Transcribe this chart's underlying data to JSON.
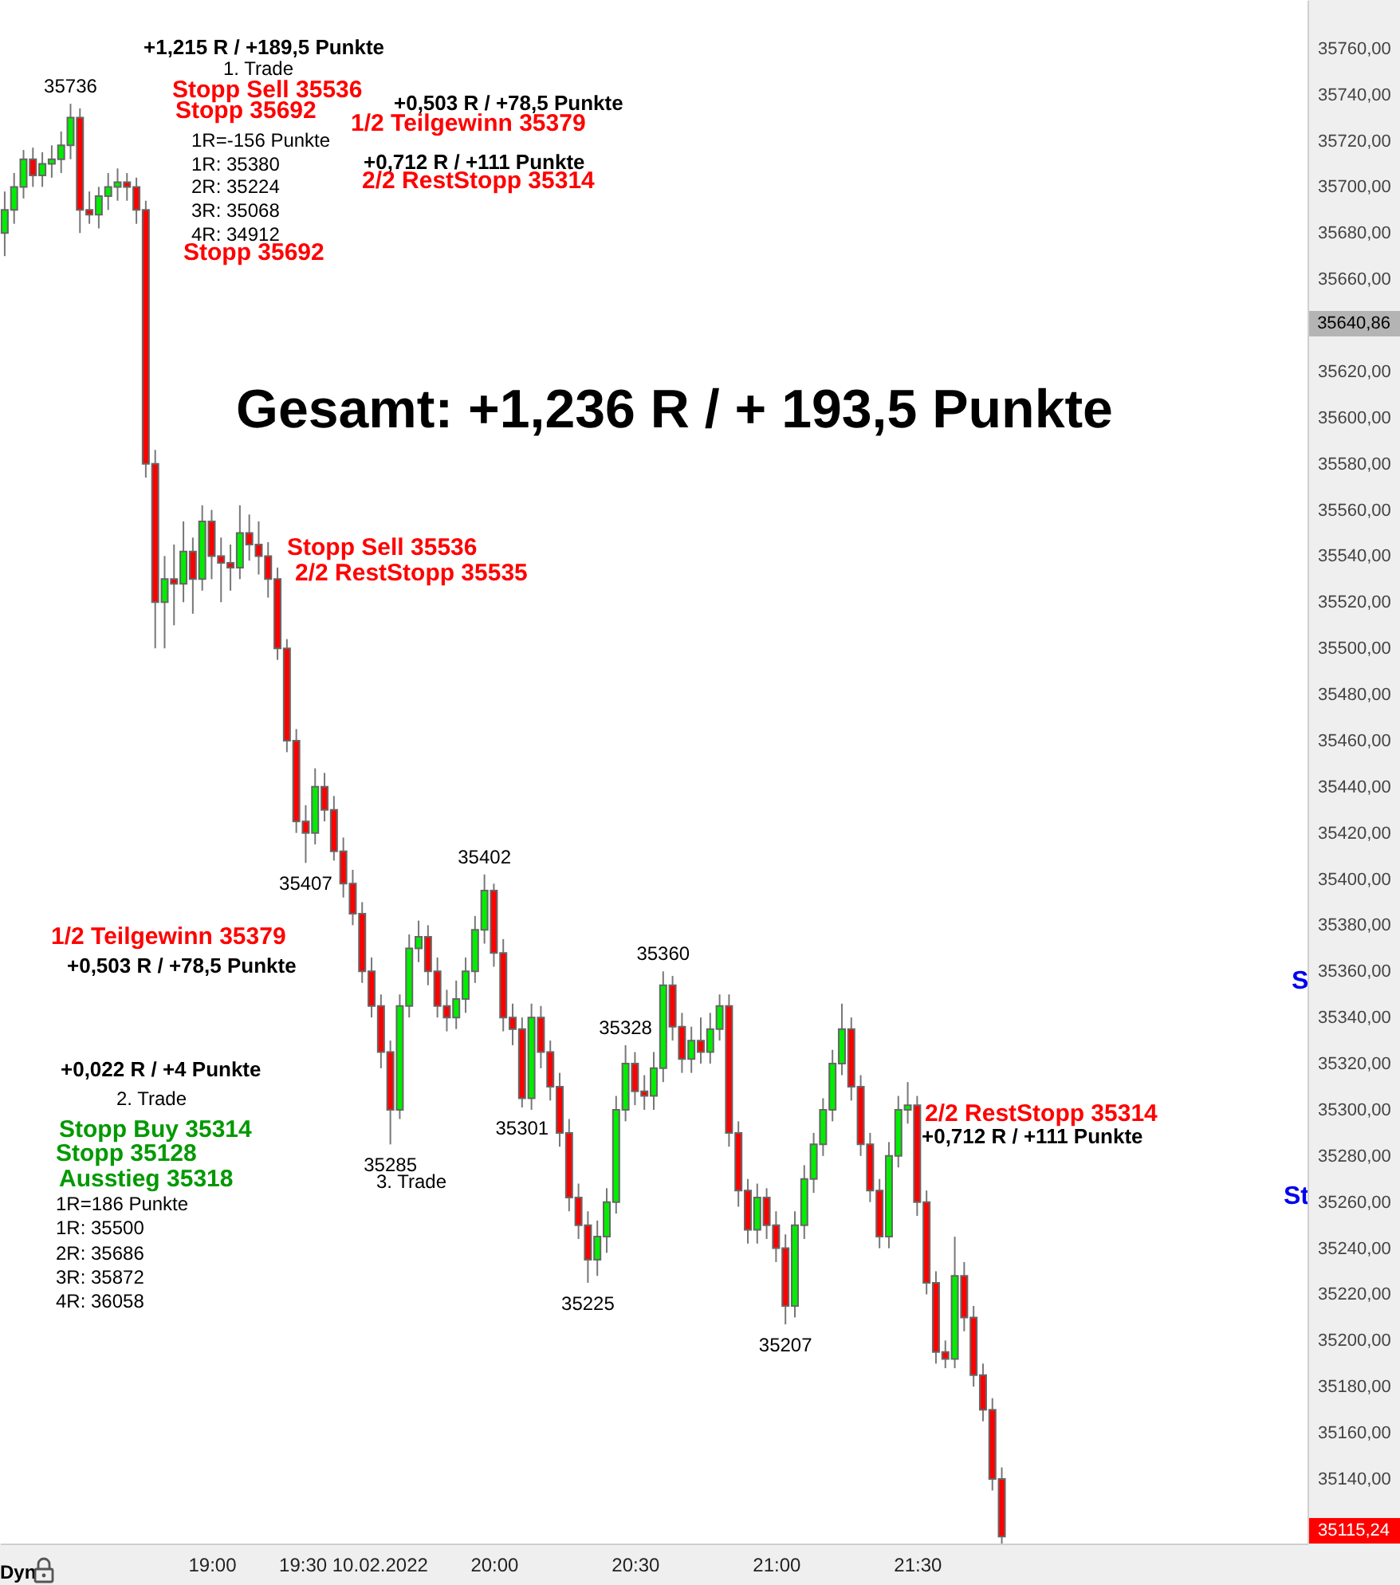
{
  "chart_data": {
    "type": "candlestick",
    "x": [
      "2022-02-10T18:16",
      "2022-02-10T18:18",
      "2022-02-10T18:20",
      "2022-02-10T18:22",
      "2022-02-10T18:24",
      "2022-02-10T18:26",
      "2022-02-10T18:28",
      "2022-02-10T18:30",
      "2022-02-10T18:32",
      "2022-02-10T18:34",
      "2022-02-10T18:36",
      "2022-02-10T18:38",
      "2022-02-10T18:40",
      "2022-02-10T18:42",
      "2022-02-10T18:44",
      "2022-02-10T18:46",
      "2022-02-10T18:48",
      "2022-02-10T18:50",
      "2022-02-10T18:52",
      "2022-02-10T18:54",
      "2022-02-10T18:56",
      "2022-02-10T18:58",
      "2022-02-10T19:00",
      "2022-02-10T19:02",
      "2022-02-10T19:04",
      "2022-02-10T19:06",
      "2022-02-10T19:08",
      "2022-02-10T19:10",
      "2022-02-10T19:12",
      "2022-02-10T19:14",
      "2022-02-10T19:16",
      "2022-02-10T19:18",
      "2022-02-10T19:20",
      "2022-02-10T19:22",
      "2022-02-10T19:24",
      "2022-02-10T19:26",
      "2022-02-10T19:28",
      "2022-02-10T19:30",
      "2022-02-10T19:32",
      "2022-02-10T19:34",
      "2022-02-10T19:36",
      "2022-02-10T19:38",
      "2022-02-10T19:40",
      "2022-02-10T19:42",
      "2022-02-10T19:44",
      "2022-02-10T19:46",
      "2022-02-10T19:48",
      "2022-02-10T19:50",
      "2022-02-10T19:52",
      "2022-02-10T19:54",
      "2022-02-10T19:56",
      "2022-02-10T19:58",
      "2022-02-10T20:00",
      "2022-02-10T20:02",
      "2022-02-10T20:04",
      "2022-02-10T20:06",
      "2022-02-10T20:08",
      "2022-02-10T20:10",
      "2022-02-10T20:12",
      "2022-02-10T20:14",
      "2022-02-10T20:16",
      "2022-02-10T20:18",
      "2022-02-10T20:20",
      "2022-02-10T20:22",
      "2022-02-10T20:24",
      "2022-02-10T20:26",
      "2022-02-10T20:28",
      "2022-02-10T20:30",
      "2022-02-10T20:32",
      "2022-02-10T20:34",
      "2022-02-10T20:36",
      "2022-02-10T20:38",
      "2022-02-10T20:40",
      "2022-02-10T20:42",
      "2022-02-10T20:44",
      "2022-02-10T20:46",
      "2022-02-10T20:48",
      "2022-02-10T20:50",
      "2022-02-10T20:52",
      "2022-02-10T20:54",
      "2022-02-10T20:56",
      "2022-02-10T20:58",
      "2022-02-10T21:00",
      "2022-02-10T21:02",
      "2022-02-10T21:04",
      "2022-02-10T21:06",
      "2022-02-10T21:08",
      "2022-02-10T21:10",
      "2022-02-10T21:12",
      "2022-02-10T21:14",
      "2022-02-10T21:16",
      "2022-02-10T21:18",
      "2022-02-10T21:20",
      "2022-02-10T21:22",
      "2022-02-10T21:24",
      "2022-02-10T21:26",
      "2022-02-10T21:28",
      "2022-02-10T21:30",
      "2022-02-10T21:32",
      "2022-02-10T21:34",
      "2022-02-10T21:36",
      "2022-02-10T21:38",
      "2022-02-10T21:40",
      "2022-02-10T21:42",
      "2022-02-10T21:44",
      "2022-02-10T21:46",
      "2022-02-10T21:48"
    ],
    "ohlc": [
      [
        35680,
        35698,
        35670,
        35690
      ],
      [
        35690,
        35706,
        35684,
        35700
      ],
      [
        35700,
        35716,
        35695,
        35712
      ],
      [
        35712,
        35717,
        35700,
        35705
      ],
      [
        35705,
        35715,
        35700,
        35710
      ],
      [
        35710,
        35718,
        35704,
        35712
      ],
      [
        35712,
        35724,
        35706,
        35718
      ],
      [
        35718,
        35736,
        35712,
        35730
      ],
      [
        35730,
        35734,
        35680,
        35690
      ],
      [
        35690,
        35698,
        35684,
        35688
      ],
      [
        35688,
        35700,
        35682,
        35696
      ],
      [
        35696,
        35706,
        35690,
        35700
      ],
      [
        35700,
        35708,
        35694,
        35702
      ],
      [
        35702,
        35706,
        35694,
        35700
      ],
      [
        35700,
        35704,
        35684,
        35690
      ],
      [
        35690,
        35694,
        35574,
        35580
      ],
      [
        35580,
        35586,
        35500,
        35520
      ],
      [
        35520,
        35540,
        35500,
        35530
      ],
      [
        35530,
        35545,
        35510,
        35528
      ],
      [
        35528,
        35555,
        35520,
        35542
      ],
      [
        35542,
        35548,
        35515,
        35530
      ],
      [
        35530,
        35562,
        35525,
        35555
      ],
      [
        35555,
        35560,
        35530,
        35540
      ],
      [
        35540,
        35548,
        35520,
        35537
      ],
      [
        35537,
        35545,
        35525,
        35535
      ],
      [
        35535,
        35562,
        35530,
        35550
      ],
      [
        35550,
        35558,
        35538,
        35545
      ],
      [
        35545,
        35555,
        35532,
        35540
      ],
      [
        35540,
        35546,
        35522,
        35530
      ],
      [
        35530,
        35535,
        35495,
        35500
      ],
      [
        35500,
        35504,
        35455,
        35460
      ],
      [
        35460,
        35465,
        35420,
        35425
      ],
      [
        35425,
        35432,
        35407,
        35420
      ],
      [
        35420,
        35448,
        35415,
        35440
      ],
      [
        35440,
        35446,
        35425,
        35430
      ],
      [
        35430,
        35436,
        35408,
        35412
      ],
      [
        35412,
        35418,
        35392,
        35398
      ],
      [
        35398,
        35404,
        35380,
        35385
      ],
      [
        35385,
        35390,
        35355,
        35360
      ],
      [
        35360,
        35366,
        35340,
        35345
      ],
      [
        35345,
        35350,
        35318,
        35325
      ],
      [
        35325,
        35330,
        35285,
        35300
      ],
      [
        35300,
        35350,
        35296,
        35345
      ],
      [
        35345,
        35376,
        35340,
        35370
      ],
      [
        35370,
        35382,
        35364,
        35375
      ],
      [
        35375,
        35380,
        35354,
        35360
      ],
      [
        35360,
        35366,
        35340,
        35345
      ],
      [
        35345,
        35352,
        35334,
        35340
      ],
      [
        35340,
        35356,
        35335,
        35348
      ],
      [
        35348,
        35366,
        35342,
        35360
      ],
      [
        35360,
        35384,
        35355,
        35378
      ],
      [
        35378,
        35402,
        35372,
        35395
      ],
      [
        35395,
        35398,
        35362,
        35368
      ],
      [
        35368,
        35374,
        35334,
        35340
      ],
      [
        35340,
        35346,
        35328,
        35335
      ],
      [
        35335,
        35340,
        35301,
        35305
      ],
      [
        35305,
        35346,
        35300,
        35340
      ],
      [
        35340,
        35345,
        35318,
        35325
      ],
      [
        35325,
        35330,
        35304,
        35310
      ],
      [
        35310,
        35316,
        35284,
        35290
      ],
      [
        35290,
        35296,
        35256,
        35262
      ],
      [
        35262,
        35268,
        35244,
        35250
      ],
      [
        35250,
        35256,
        35225,
        35235
      ],
      [
        35235,
        35252,
        35228,
        35245
      ],
      [
        35245,
        35266,
        35238,
        35260
      ],
      [
        35260,
        35306,
        35255,
        35300
      ],
      [
        35300,
        35328,
        35295,
        35320
      ],
      [
        35320,
        35325,
        35302,
        35308
      ],
      [
        35308,
        35315,
        35300,
        35306
      ],
      [
        35306,
        35325,
        35300,
        35318
      ],
      [
        35318,
        35360,
        35312,
        35354
      ],
      [
        35354,
        35358,
        35330,
        35336
      ],
      [
        35336,
        35342,
        35316,
        35322
      ],
      [
        35322,
        35336,
        35316,
        35330
      ],
      [
        35330,
        35340,
        35320,
        35325
      ],
      [
        35325,
        35342,
        35320,
        35335
      ],
      [
        35335,
        35350,
        35330,
        35345
      ],
      [
        35345,
        35350,
        35284,
        35290
      ],
      [
        35290,
        35295,
        35258,
        35265
      ],
      [
        35265,
        35270,
        35242,
        35248
      ],
      [
        35248,
        35268,
        35242,
        35262
      ],
      [
        35262,
        35266,
        35244,
        35250
      ],
      [
        35250,
        35256,
        35234,
        35240
      ],
      [
        35240,
        35246,
        35207,
        35215
      ],
      [
        35215,
        35256,
        35210,
        35250
      ],
      [
        35250,
        35276,
        35244,
        35270
      ],
      [
        35270,
        35290,
        35264,
        35285
      ],
      [
        35285,
        35305,
        35280,
        35300
      ],
      [
        35300,
        35326,
        35295,
        35320
      ],
      [
        35320,
        35346,
        35315,
        35335
      ],
      [
        35335,
        35340,
        35304,
        35310
      ],
      [
        35310,
        35315,
        35280,
        35285
      ],
      [
        35285,
        35290,
        35260,
        35265
      ],
      [
        35265,
        35270,
        35240,
        35245
      ],
      [
        35245,
        35286,
        35240,
        35280
      ],
      [
        35280,
        35306,
        35275,
        35300
      ],
      [
        35300,
        35312,
        35294,
        35302
      ],
      [
        35302,
        35306,
        35254,
        35260
      ],
      [
        35260,
        35265,
        35220,
        35225
      ],
      [
        35225,
        35230,
        35190,
        35195
      ],
      [
        35195,
        35200,
        35188,
        35192
      ],
      [
        35192,
        35245,
        35188,
        35228
      ],
      [
        35228,
        35234,
        35204,
        35210
      ],
      [
        35210,
        35215,
        35180,
        35185
      ],
      [
        35185,
        35190,
        35165,
        35170
      ],
      [
        35170,
        35175,
        35135,
        35140
      ],
      [
        35140,
        35145,
        35112,
        35115
      ]
    ],
    "xlim": [
      "2022-02-10T18:15",
      "2022-02-10T22:53"
    ],
    "xticks": [
      {
        "value": "2022-02-10T19:00",
        "label": "19:00"
      },
      {
        "value": "2022-02-10T19:30",
        "label": "19:30 10.02.2022"
      },
      {
        "value": "2022-02-10T20:00",
        "label": "20:00"
      },
      {
        "value": "2022-02-10T20:30",
        "label": "20:30"
      },
      {
        "value": "2022-02-10T21:00",
        "label": "21:00"
      },
      {
        "value": "2022-02-10T21:30",
        "label": "21:30"
      }
    ],
    "ylim": [
      35112,
      35781
    ],
    "yticks": [
      {
        "value": 35140,
        "label": "35140,00"
      },
      {
        "value": 35160,
        "label": "35160,00"
      },
      {
        "value": 35180,
        "label": "35180,00"
      },
      {
        "value": 35200,
        "label": "35200,00"
      },
      {
        "value": 35220,
        "label": "35220,00"
      },
      {
        "value": 35240,
        "label": "35240,00"
      },
      {
        "value": 35260,
        "label": "35260,00"
      },
      {
        "value": 35280,
        "label": "35280,00"
      },
      {
        "value": 35300,
        "label": "35300,00"
      },
      {
        "value": 35320,
        "label": "35320,00"
      },
      {
        "value": 35340,
        "label": "35340,00"
      },
      {
        "value": 35360,
        "label": "35360,00"
      },
      {
        "value": 35380,
        "label": "35380,00"
      },
      {
        "value": 35400,
        "label": "35400,00"
      },
      {
        "value": 35420,
        "label": "35420,00"
      },
      {
        "value": 35440,
        "label": "35440,00"
      },
      {
        "value": 35460,
        "label": "35460,00"
      },
      {
        "value": 35480,
        "label": "35480,00"
      },
      {
        "value": 35500,
        "label": "35500,00"
      },
      {
        "value": 35520,
        "label": "35520,00"
      },
      {
        "value": 35540,
        "label": "35540,00"
      },
      {
        "value": 35560,
        "label": "35560,00"
      },
      {
        "value": 35580,
        "label": "35580,00"
      },
      {
        "value": 35600,
        "label": "35600,00"
      },
      {
        "value": 35620,
        "label": "35620,00"
      },
      {
        "value": 35660,
        "label": "35660,00"
      },
      {
        "value": 35680,
        "label": "35680,00"
      },
      {
        "value": 35700,
        "label": "35700,00"
      },
      {
        "value": 35720,
        "label": "35720,00"
      },
      {
        "value": 35740,
        "label": "35740,00"
      },
      {
        "value": 35760,
        "label": "35760,00"
      }
    ],
    "annotations": [
      "+1,215 R / +189,5 Punkte",
      "1. Trade",
      "Stopp Sell 35536",
      "Stopp 35692",
      "+0,503 R / +78,5 Punkte",
      "1/2 Teilgewinn 35379",
      "1R=-156 Punkte",
      "1R: 35380",
      "2R: 35224",
      "3R: 35068",
      "4R: 34912",
      "+0,712 R / +111 Punkte",
      "2/2 RestStopp 35314",
      "Stopp 35692",
      "Gesamt: +1,236 R / + 193,5 Punkte",
      "Stopp Sell 35536",
      "2/2 RestStopp 35535",
      "1/2 Teilgewinn 35379",
      "+0,503 R / +78,5 Punkte",
      "+0,022 R / +4 Punkte",
      "2. Trade",
      "Stopp Buy 35314",
      "Stopp 35128",
      "Ausstieg 35318",
      "1R=186 Punkte",
      "1R: 35500",
      "2R: 35686",
      "3R: 35872",
      "4R: 36058",
      "3. Trade",
      "2/2 RestStopp 35314",
      "+0,712 R / +111 Punkte",
      "S",
      "St",
      "Dyn",
      "35640,86",
      "35115,24",
      {
        "text": "35736",
        "x": "2022-02-10T18:30",
        "y": 35736
      },
      {
        "text": "35407",
        "x": "2022-02-10T19:20",
        "y": 35407
      },
      {
        "text": "35402",
        "x": "2022-02-10T19:58",
        "y": 35402
      },
      {
        "text": "35285",
        "x": "2022-02-10T19:38",
        "y": 35285
      },
      {
        "text": "35301",
        "x": "2022-02-10T20:06",
        "y": 35301
      },
      {
        "text": "35328",
        "x": "2022-02-10T20:28",
        "y": 35328
      },
      {
        "text": "35360",
        "x": "2022-02-10T20:36",
        "y": 35360
      },
      {
        "text": "35225",
        "x": "2022-02-10T20:20",
        "y": 35225
      },
      {
        "text": "35207",
        "x": "2022-02-10T21:02",
        "y": 35207
      }
    ]
  }
}
